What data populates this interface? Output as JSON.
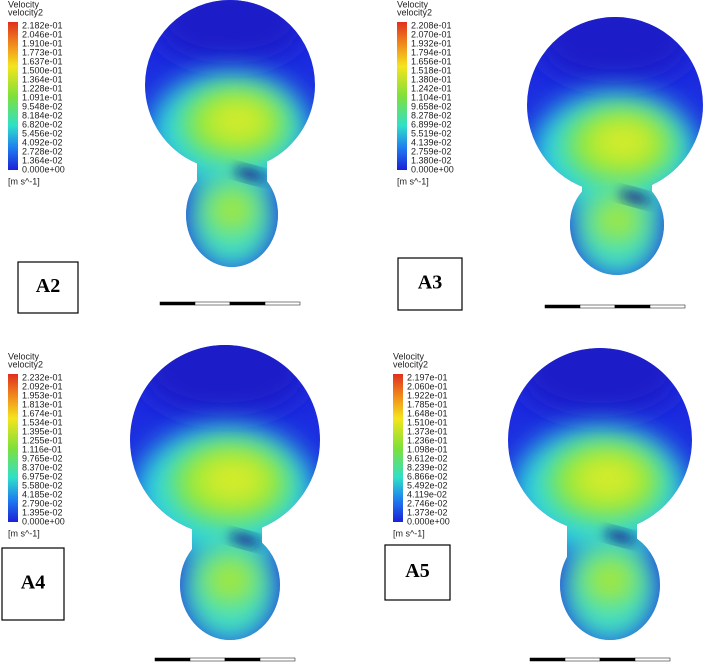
{
  "panels": [
    {
      "label": "A2",
      "legend": {
        "title": "Velocity",
        "variable": "velocity2",
        "unit": "[m s^-1]",
        "ticks": [
          "2.182e-01",
          "2.046e-01",
          "1.910e-01",
          "1.773e-01",
          "1.637e-01",
          "1.500e-01",
          "1.364e-01",
          "1.228e-01",
          "1.091e-01",
          "9.548e-02",
          "8.184e-02",
          "6.820e-02",
          "5.456e-02",
          "4.092e-02",
          "2.728e-02",
          "1.364e-02",
          "0.000e+00"
        ]
      }
    },
    {
      "label": "A3",
      "legend": {
        "title": "Velocity",
        "variable": "velocity2",
        "unit": "[m s^-1]",
        "ticks": [
          "2.208e-01",
          "2.070e-01",
          "1.932e-01",
          "1.794e-01",
          "1.656e-01",
          "1.518e-01",
          "1.380e-01",
          "1.242e-01",
          "1.104e-01",
          "9.658e-02",
          "8.278e-02",
          "6.899e-02",
          "5.519e-02",
          "4.139e-02",
          "2.759e-02",
          "1.380e-02",
          "0.000e+00"
        ]
      }
    },
    {
      "label": "A4",
      "legend": {
        "title": "Velocity",
        "variable": "velocity2",
        "unit": "[m s^-1]",
        "ticks": [
          "2.232e-01",
          "2.092e-01",
          "1.953e-01",
          "1.813e-01",
          "1.674e-01",
          "1.534e-01",
          "1.395e-01",
          "1.255e-01",
          "1.116e-01",
          "9.765e-02",
          "8.370e-02",
          "6.975e-02",
          "5.580e-02",
          "4.185e-02",
          "2.790e-02",
          "1.395e-02",
          "0.000e+00"
        ]
      }
    },
    {
      "label": "A5",
      "legend": {
        "title": "Velocity",
        "variable": "velocity2",
        "unit": "[m s^-1]",
        "ticks": [
          "2.197e-01",
          "2.060e-01",
          "1.922e-01",
          "1.785e-01",
          "1.648e-01",
          "1.510e-01",
          "1.373e-01",
          "1.236e-01",
          "1.098e-01",
          "9.612e-02",
          "8.239e-02",
          "6.866e-02",
          "5.492e-02",
          "4.119e-02",
          "2.746e-02",
          "1.373e-02",
          "0.000e+00"
        ]
      }
    }
  ]
}
